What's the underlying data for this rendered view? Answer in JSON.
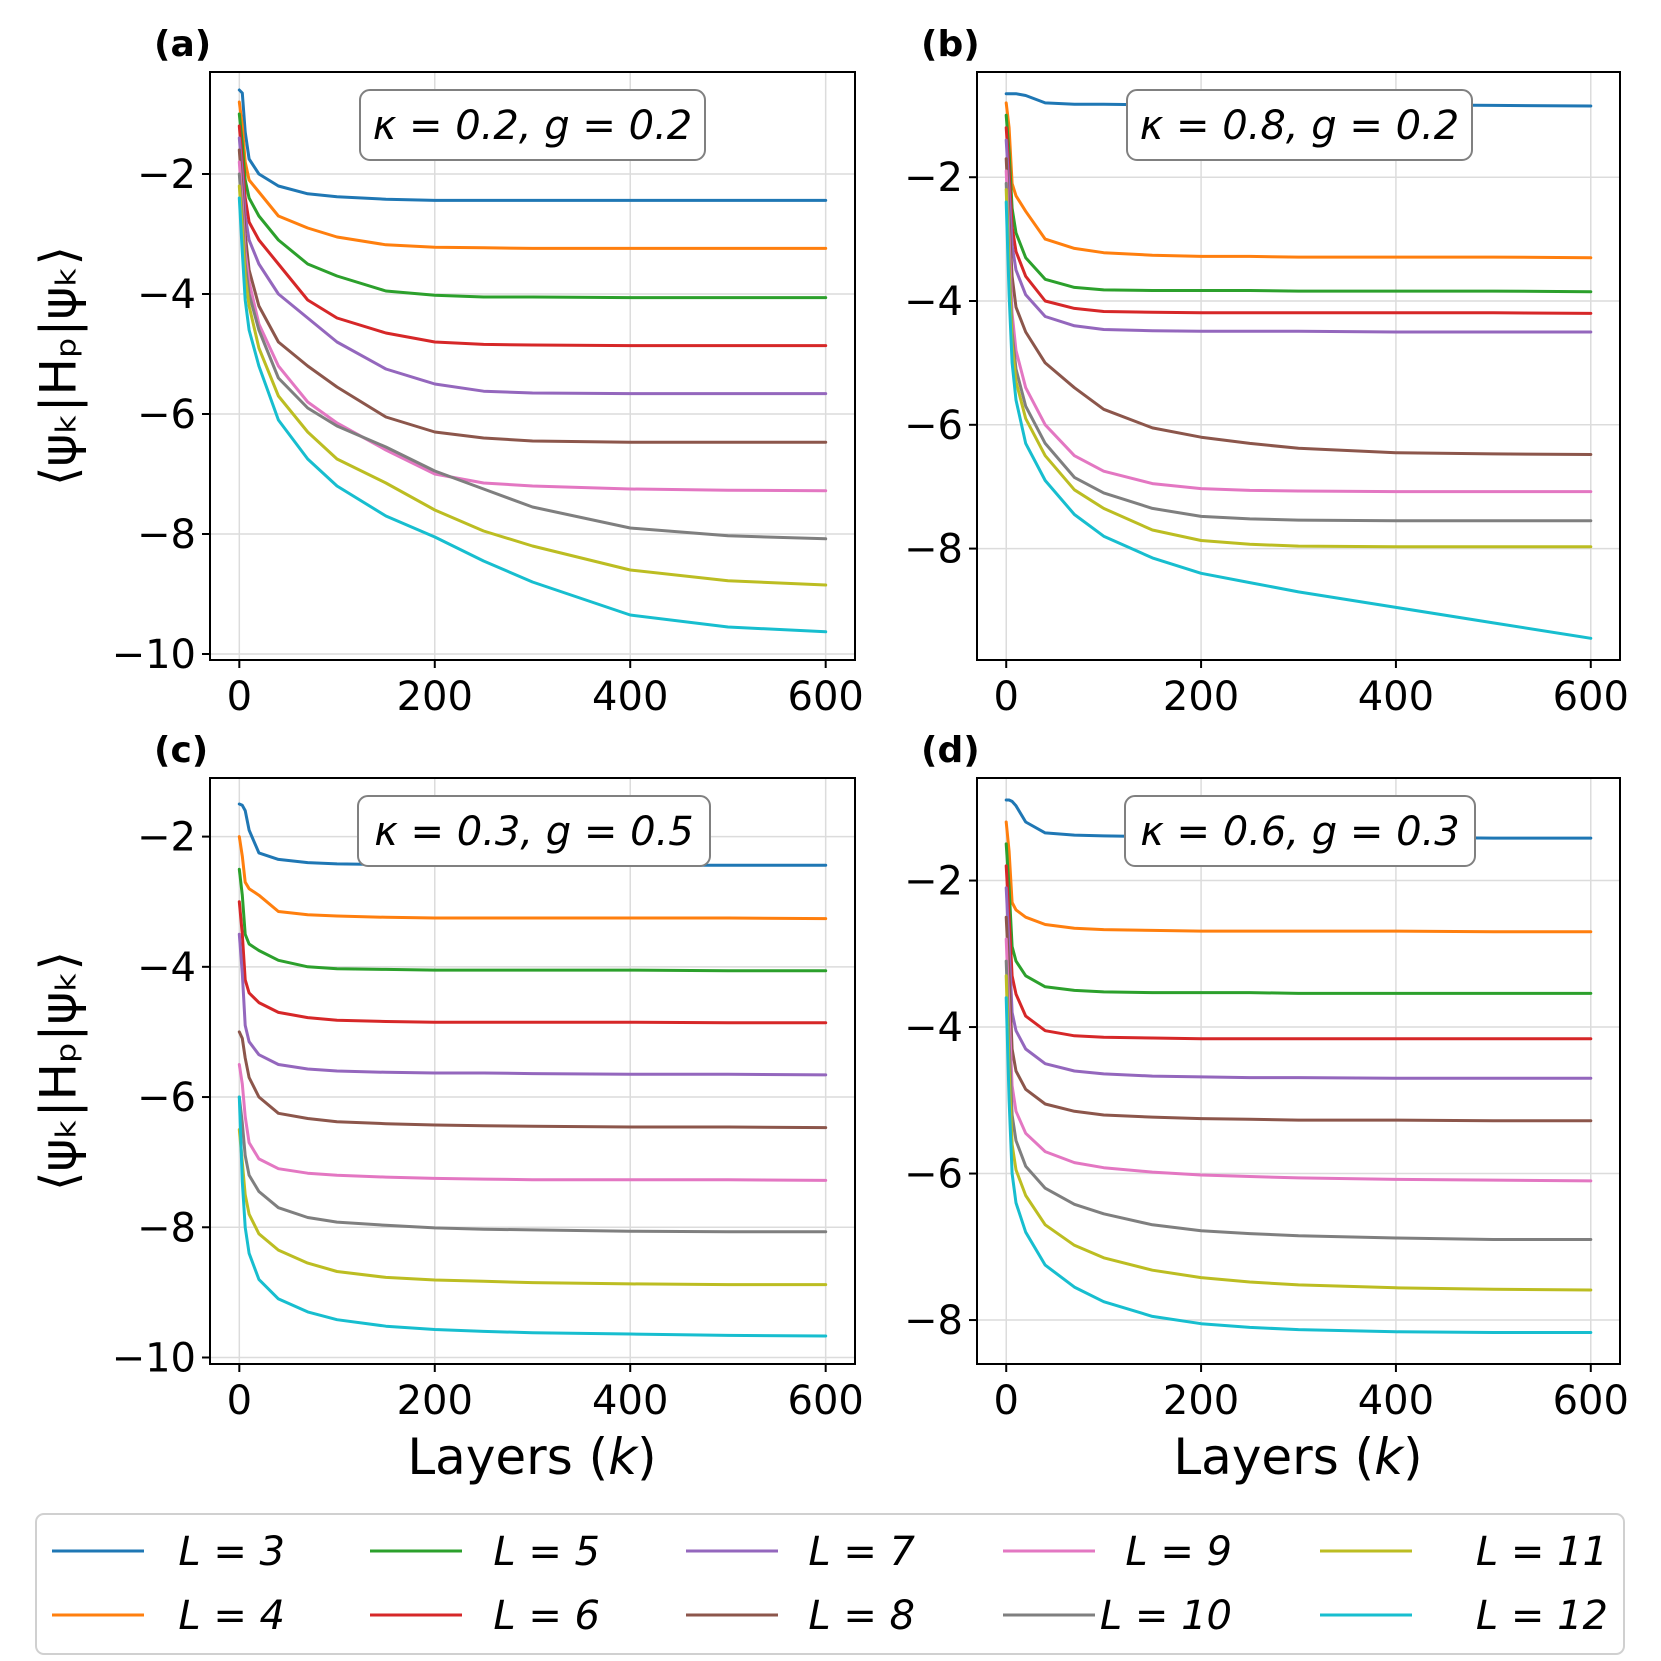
{
  "chart_data": {
    "type": "line",
    "shared": {
      "xlabel_prefix": "Layers (",
      "xlabel_var": "k",
      "xlabel_suffix": ")",
      "ylabel": "⟨ψₖ|Hₚ|ψₖ⟩",
      "xlim": [
        -30,
        630
      ],
      "x": [
        0,
        3,
        6,
        10,
        20,
        40,
        70,
        100,
        150,
        200,
        250,
        300,
        400,
        500,
        600
      ]
    },
    "legend": {
      "position": "bottom",
      "columns": 5,
      "entries": [
        {
          "name": "L = 3",
          "color": "#1f77b4"
        },
        {
          "name": "L = 4",
          "color": "#ff7f0e"
        },
        {
          "name": "L = 5",
          "color": "#2ca02c"
        },
        {
          "name": "L = 6",
          "color": "#d62728"
        },
        {
          "name": "L = 7",
          "color": "#9467bd"
        },
        {
          "name": "L = 8",
          "color": "#8c564b"
        },
        {
          "name": "L = 9",
          "color": "#e377c2"
        },
        {
          "name": "L = 10",
          "color": "#7f7f7f"
        },
        {
          "name": "L = 11",
          "color": "#bcbd22"
        },
        {
          "name": "L = 12",
          "color": "#17becf"
        }
      ]
    },
    "panels": [
      {
        "label": "(a)",
        "annotation": "κ = 0.2, g = 0.2",
        "ylim": [
          -10.1,
          -0.3
        ],
        "yticks": [
          -2,
          -4,
          -6,
          -8,
          -10
        ],
        "xticks": [
          0,
          200,
          400,
          600
        ],
        "series": [
          {
            "name": "L = 3",
            "values": [
              -0.6,
              -0.65,
              -1.3,
              -1.75,
              -2.0,
              -2.2,
              -2.33,
              -2.38,
              -2.42,
              -2.44,
              -2.44,
              -2.44,
              -2.44,
              -2.44,
              -2.44
            ]
          },
          {
            "name": "L = 4",
            "values": [
              -0.8,
              -1.2,
              -1.8,
              -2.1,
              -2.3,
              -2.7,
              -2.9,
              -3.05,
              -3.18,
              -3.22,
              -3.23,
              -3.24,
              -3.24,
              -3.24,
              -3.24
            ]
          },
          {
            "name": "L = 5",
            "values": [
              -1.0,
              -1.5,
              -2.1,
              -2.4,
              -2.7,
              -3.1,
              -3.5,
              -3.7,
              -3.95,
              -4.02,
              -4.05,
              -4.05,
              -4.06,
              -4.06,
              -4.06
            ]
          },
          {
            "name": "L = 6",
            "values": [
              -1.2,
              -1.8,
              -2.4,
              -2.8,
              -3.1,
              -3.5,
              -4.1,
              -4.4,
              -4.65,
              -4.8,
              -4.84,
              -4.85,
              -4.86,
              -4.86,
              -4.86
            ]
          },
          {
            "name": "L = 7",
            "values": [
              -1.4,
              -2.0,
              -2.7,
              -3.1,
              -3.5,
              -4.0,
              -4.4,
              -4.8,
              -5.25,
              -5.5,
              -5.62,
              -5.65,
              -5.66,
              -5.66,
              -5.66
            ]
          },
          {
            "name": "L = 8",
            "values": [
              -1.6,
              -2.3,
              -3.0,
              -3.6,
              -4.2,
              -4.8,
              -5.2,
              -5.55,
              -6.05,
              -6.3,
              -6.4,
              -6.45,
              -6.47,
              -6.47,
              -6.47
            ]
          },
          {
            "name": "L = 9",
            "values": [
              -1.8,
              -2.5,
              -3.3,
              -3.8,
              -4.5,
              -5.2,
              -5.8,
              -6.15,
              -6.6,
              -7.0,
              -7.15,
              -7.2,
              -7.25,
              -7.27,
              -7.28
            ]
          },
          {
            "name": "L = 10",
            "values": [
              -2.0,
              -2.7,
              -3.5,
              -4.0,
              -4.6,
              -5.4,
              -5.9,
              -6.2,
              -6.55,
              -6.95,
              -7.25,
              -7.55,
              -7.9,
              -8.03,
              -8.08
            ]
          },
          {
            "name": "L = 11",
            "values": [
              -2.2,
              -2.9,
              -3.7,
              -4.2,
              -4.9,
              -5.7,
              -6.3,
              -6.75,
              -7.15,
              -7.6,
              -7.95,
              -8.2,
              -8.6,
              -8.78,
              -8.85
            ]
          },
          {
            "name": "L = 12",
            "values": [
              -2.4,
              -3.3,
              -4.1,
              -4.6,
              -5.2,
              -6.1,
              -6.75,
              -7.2,
              -7.7,
              -8.05,
              -8.45,
              -8.8,
              -9.35,
              -9.55,
              -9.63
            ]
          }
        ]
      },
      {
        "label": "(b)",
        "annotation": "κ = 0.8, g = 0.2",
        "ylim": [
          -9.8,
          -0.3
        ],
        "yticks": [
          -2,
          -4,
          -6,
          -8
        ],
        "xticks": [
          0,
          200,
          400,
          600
        ],
        "series": [
          {
            "name": "L = 3",
            "values": [
              -0.65,
              -0.65,
              -0.65,
              -0.65,
              -0.68,
              -0.8,
              -0.82,
              -0.82,
              -0.83,
              -0.83,
              -0.83,
              -0.83,
              -0.83,
              -0.84,
              -0.85
            ]
          },
          {
            "name": "L = 4",
            "values": [
              -0.8,
              -1.2,
              -2.1,
              -2.3,
              -2.55,
              -3.0,
              -3.15,
              -3.22,
              -3.26,
              -3.28,
              -3.28,
              -3.29,
              -3.29,
              -3.29,
              -3.3
            ]
          },
          {
            "name": "L = 5",
            "values": [
              -1.0,
              -1.6,
              -2.5,
              -2.9,
              -3.3,
              -3.65,
              -3.78,
              -3.82,
              -3.83,
              -3.83,
              -3.83,
              -3.84,
              -3.84,
              -3.84,
              -3.85
            ]
          },
          {
            "name": "L = 6",
            "values": [
              -1.2,
              -1.9,
              -2.8,
              -3.2,
              -3.6,
              -4.0,
              -4.12,
              -4.17,
              -4.18,
              -4.19,
              -4.19,
              -4.19,
              -4.19,
              -4.19,
              -4.2
            ]
          },
          {
            "name": "L = 7",
            "values": [
              -1.4,
              -2.2,
              -3.1,
              -3.5,
              -3.9,
              -4.25,
              -4.4,
              -4.46,
              -4.48,
              -4.49,
              -4.49,
              -4.49,
              -4.5,
              -4.5,
              -4.5
            ]
          },
          {
            "name": "L = 8",
            "values": [
              -1.7,
              -2.7,
              -3.6,
              -4.1,
              -4.5,
              -5.0,
              -5.4,
              -5.75,
              -6.05,
              -6.2,
              -6.3,
              -6.38,
              -6.45,
              -6.47,
              -6.48
            ]
          },
          {
            "name": "L = 9",
            "values": [
              -1.9,
              -3.0,
              -4.2,
              -4.8,
              -5.4,
              -6.0,
              -6.5,
              -6.75,
              -6.95,
              -7.03,
              -7.06,
              -7.07,
              -7.08,
              -7.08,
              -7.08
            ]
          },
          {
            "name": "L = 10",
            "values": [
              -2.1,
              -3.3,
              -4.5,
              -5.1,
              -5.7,
              -6.3,
              -6.85,
              -7.1,
              -7.35,
              -7.48,
              -7.52,
              -7.54,
              -7.55,
              -7.55,
              -7.55
            ]
          },
          {
            "name": "L = 11",
            "values": [
              -2.2,
              -3.5,
              -4.7,
              -5.3,
              -5.9,
              -6.5,
              -7.05,
              -7.35,
              -7.7,
              -7.87,
              -7.93,
              -7.96,
              -7.97,
              -7.97,
              -7.97
            ]
          },
          {
            "name": "L = 12",
            "values": [
              -2.4,
              -3.9,
              -5.0,
              -5.6,
              -6.3,
              -6.9,
              -7.45,
              -7.8,
              -8.15,
              -8.4,
              -8.55,
              -8.7,
              -8.95,
              -9.2,
              -9.45
            ]
          }
        ]
      },
      {
        "label": "(c)",
        "annotation": "κ = 0.3, g = 0.5",
        "ylim": [
          -10.1,
          -1.1
        ],
        "yticks": [
          -2,
          -4,
          -6,
          -8,
          -10
        ],
        "xticks": [
          0,
          200,
          400,
          600
        ],
        "series": [
          {
            "name": "L = 3",
            "values": [
              -1.5,
              -1.52,
              -1.6,
              -1.9,
              -2.25,
              -2.35,
              -2.4,
              -2.42,
              -2.43,
              -2.44,
              -2.44,
              -2.44,
              -2.44,
              -2.44,
              -2.44
            ]
          },
          {
            "name": "L = 4",
            "values": [
              -2.0,
              -2.3,
              -2.7,
              -2.8,
              -2.9,
              -3.15,
              -3.2,
              -3.22,
              -3.24,
              -3.25,
              -3.25,
              -3.25,
              -3.25,
              -3.25,
              -3.26
            ]
          },
          {
            "name": "L = 5",
            "values": [
              -2.5,
              -2.9,
              -3.5,
              -3.65,
              -3.75,
              -3.9,
              -4.0,
              -4.03,
              -4.04,
              -4.05,
              -4.05,
              -4.05,
              -4.05,
              -4.06,
              -4.06
            ]
          },
          {
            "name": "L = 6",
            "values": [
              -3.0,
              -3.5,
              -4.2,
              -4.4,
              -4.55,
              -4.7,
              -4.78,
              -4.82,
              -4.84,
              -4.85,
              -4.85,
              -4.85,
              -4.85,
              -4.86,
              -4.86
            ]
          },
          {
            "name": "L = 7",
            "values": [
              -3.5,
              -4.1,
              -4.9,
              -5.15,
              -5.35,
              -5.5,
              -5.57,
              -5.6,
              -5.62,
              -5.63,
              -5.63,
              -5.64,
              -5.65,
              -5.65,
              -5.66
            ]
          },
          {
            "name": "L = 8",
            "values": [
              -5.0,
              -5.1,
              -5.4,
              -5.7,
              -6.0,
              -6.25,
              -6.33,
              -6.38,
              -6.41,
              -6.43,
              -6.44,
              -6.45,
              -6.46,
              -6.46,
              -6.47
            ]
          },
          {
            "name": "L = 9",
            "values": [
              -5.5,
              -5.8,
              -6.3,
              -6.7,
              -6.95,
              -7.1,
              -7.17,
              -7.2,
              -7.23,
              -7.25,
              -7.26,
              -7.27,
              -7.27,
              -7.27,
              -7.28
            ]
          },
          {
            "name": "L = 10",
            "values": [
              -6.0,
              -6.4,
              -6.9,
              -7.2,
              -7.45,
              -7.7,
              -7.85,
              -7.92,
              -7.97,
              -8.01,
              -8.03,
              -8.04,
              -8.06,
              -8.07,
              -8.07
            ]
          },
          {
            "name": "L = 11",
            "values": [
              -6.5,
              -7.0,
              -7.5,
              -7.8,
              -8.1,
              -8.35,
              -8.55,
              -8.68,
              -8.77,
              -8.81,
              -8.83,
              -8.85,
              -8.87,
              -8.88,
              -8.88
            ]
          },
          {
            "name": "L = 12",
            "values": [
              -6.0,
              -7.3,
              -8.0,
              -8.4,
              -8.8,
              -9.1,
              -9.3,
              -9.42,
              -9.52,
              -9.57,
              -9.6,
              -9.62,
              -9.64,
              -9.66,
              -9.67
            ]
          }
        ]
      },
      {
        "label": "(d)",
        "annotation": "κ = 0.6, g = 0.3",
        "ylim": [
          -8.6,
          -0.6
        ],
        "yticks": [
          -2,
          -4,
          -6,
          -8
        ],
        "xticks": [
          0,
          200,
          400,
          600
        ],
        "series": [
          {
            "name": "L = 3",
            "values": [
              -0.9,
              -0.9,
              -0.92,
              -0.98,
              -1.2,
              -1.35,
              -1.38,
              -1.39,
              -1.4,
              -1.41,
              -1.41,
              -1.41,
              -1.41,
              -1.42,
              -1.42
            ]
          },
          {
            "name": "L = 4",
            "values": [
              -1.2,
              -1.6,
              -2.3,
              -2.4,
              -2.5,
              -2.6,
              -2.65,
              -2.67,
              -2.68,
              -2.69,
              -2.69,
              -2.69,
              -2.69,
              -2.7,
              -2.7
            ]
          },
          {
            "name": "L = 5",
            "values": [
              -1.5,
              -2.1,
              -2.9,
              -3.1,
              -3.3,
              -3.45,
              -3.5,
              -3.52,
              -3.53,
              -3.53,
              -3.53,
              -3.54,
              -3.54,
              -3.54,
              -3.54
            ]
          },
          {
            "name": "L = 6",
            "values": [
              -1.8,
              -2.5,
              -3.3,
              -3.55,
              -3.85,
              -4.05,
              -4.12,
              -4.14,
              -4.15,
              -4.16,
              -4.16,
              -4.16,
              -4.16,
              -4.16,
              -4.16
            ]
          },
          {
            "name": "L = 7",
            "values": [
              -2.1,
              -2.9,
              -3.8,
              -4.05,
              -4.3,
              -4.5,
              -4.6,
              -4.64,
              -4.67,
              -4.68,
              -4.69,
              -4.69,
              -4.7,
              -4.7,
              -4.7
            ]
          },
          {
            "name": "L = 8",
            "values": [
              -2.5,
              -3.3,
              -4.3,
              -4.6,
              -4.85,
              -5.05,
              -5.15,
              -5.2,
              -5.23,
              -5.25,
              -5.26,
              -5.27,
              -5.27,
              -5.28,
              -5.28
            ]
          },
          {
            "name": "L = 9",
            "values": [
              -2.8,
              -3.8,
              -4.8,
              -5.15,
              -5.45,
              -5.7,
              -5.85,
              -5.92,
              -5.98,
              -6.02,
              -6.04,
              -6.06,
              -6.08,
              -6.09,
              -6.1
            ]
          },
          {
            "name": "L = 10",
            "values": [
              -3.1,
              -4.2,
              -5.2,
              -5.55,
              -5.9,
              -6.2,
              -6.42,
              -6.55,
              -6.7,
              -6.78,
              -6.82,
              -6.85,
              -6.88,
              -6.9,
              -6.9
            ]
          },
          {
            "name": "L = 11",
            "values": [
              -3.3,
              -4.6,
              -5.6,
              -5.95,
              -6.3,
              -6.7,
              -6.98,
              -7.15,
              -7.32,
              -7.42,
              -7.48,
              -7.52,
              -7.56,
              -7.58,
              -7.59
            ]
          },
          {
            "name": "L = 12",
            "values": [
              -3.6,
              -5.0,
              -6.0,
              -6.4,
              -6.8,
              -7.25,
              -7.55,
              -7.75,
              -7.95,
              -8.05,
              -8.1,
              -8.13,
              -8.16,
              -8.17,
              -8.17
            ]
          }
        ]
      }
    ]
  }
}
